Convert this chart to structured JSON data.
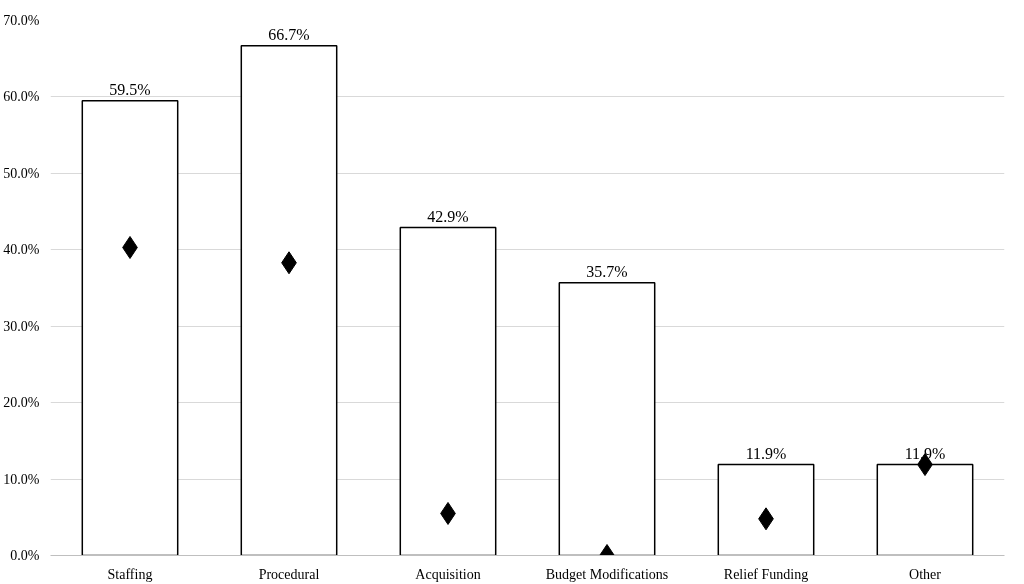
{
  "chart_data": {
    "type": "bar",
    "categories": [
      "Staffing",
      "Procedural",
      "Acquisition",
      "Budget Modifications",
      "Relief Funding",
      "Other"
    ],
    "series": [
      {
        "color": "#ffffff",
        "values": [
          59.5,
          66.7,
          42.9,
          35.7,
          11.9,
          11.9
        ],
        "value_labels": [
          "59.5%",
          "66.7%",
          "42.9%",
          "35.7%",
          "11.9%",
          "11.9%"
        ]
      },
      {
        "type": "scatter",
        "color": "#000000",
        "marker": "diamond",
        "x": [
          "Staffing",
          "Procedural",
          "Acquisition",
          "Budget Modifications",
          "Relief Funding",
          "Other"
        ],
        "values": [
          40.3,
          38.3,
          5.5,
          0,
          4.8,
          11.9
        ]
      }
    ],
    "ylim": [
      0,
      70
    ],
    "yticks": [
      {
        "value": 0,
        "label": "0.0%"
      },
      {
        "value": 10,
        "label": "10.0%"
      },
      {
        "value": 20,
        "label": "20.0%"
      },
      {
        "value": 30,
        "label": "30.0%"
      },
      {
        "value": 40,
        "label": "40.0%"
      },
      {
        "value": 50,
        "label": "50.0%"
      },
      {
        "value": 60,
        "label": "60.0%"
      },
      {
        "value": 70,
        "label": "70.0%"
      }
    ],
    "grid": "y"
  }
}
